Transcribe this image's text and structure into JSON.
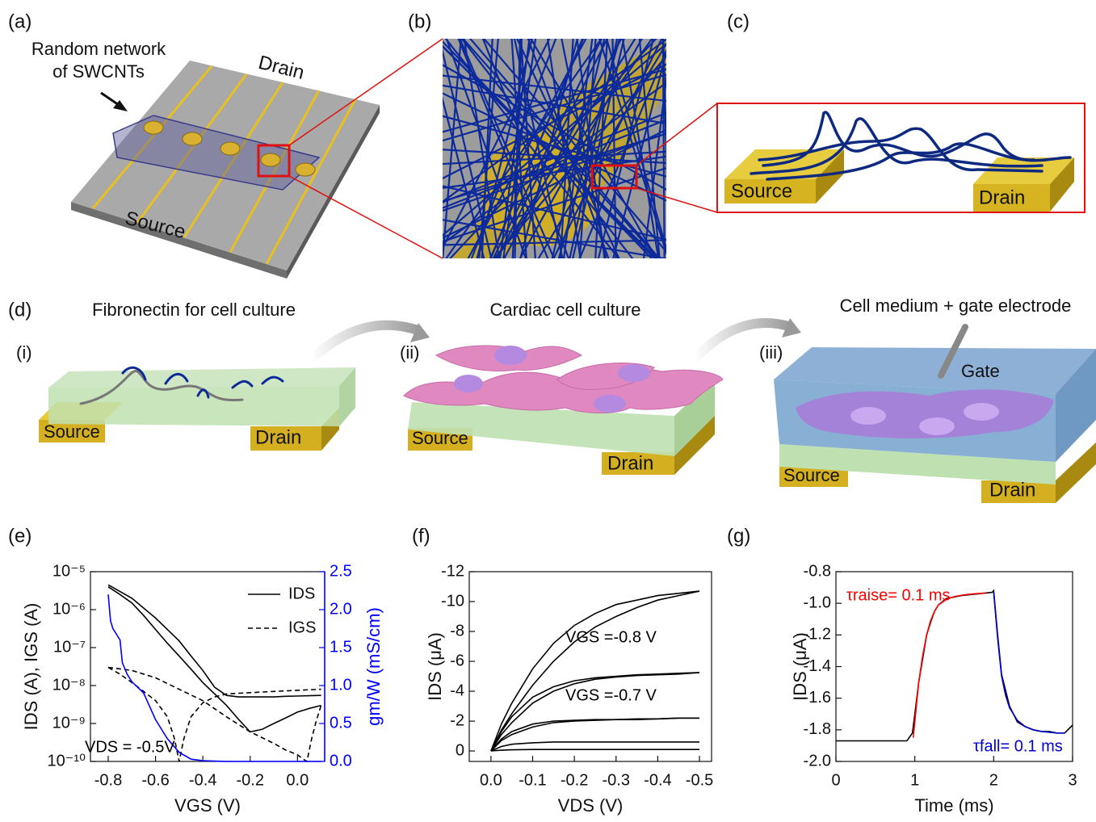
{
  "panel_labels": [
    "(a)",
    "(b)",
    "(c)",
    "(d)",
    "(e)",
    "(f)",
    "(g)"
  ],
  "panel_a": {
    "annotation": [
      "Random network",
      "of SWCNTs"
    ],
    "drain": "Drain",
    "source": "Source"
  },
  "panel_c": {
    "source": "Source",
    "drain": "Drain"
  },
  "panel_d": {
    "steps": [
      {
        "label": "(i)",
        "title": "Fibronectin for cell culture",
        "source": "Source",
        "drain": "Drain"
      },
      {
        "label": "(ii)",
        "title": "Cardiac cell culture",
        "source": "Source",
        "drain": "Drain"
      },
      {
        "label": "(iii)",
        "title": "Cell medium + gate electrode",
        "source": "Source",
        "drain": "Drain",
        "gate": "Gate"
      }
    ]
  },
  "chart_data": [
    {
      "type": "line",
      "x_label": "VGS (V)",
      "y_label": "IDS (A), IGS (A)",
      "y2_label": "gm/W (mS/cm)",
      "annotations": [
        {
          "text": "VDS = -0.5V",
          "color": "#000000"
        }
      ],
      "xlim": [
        -0.875,
        0.115
      ],
      "xticks": [
        -0.8,
        -0.6,
        -0.4,
        -0.2,
        {
          "value": 0,
          "label": "0.0"
        }
      ],
      "log_y": true,
      "ylim": [
        1e-10,
        1e-05
      ],
      "yticks": [
        {
          "value": 1e-10,
          "label": "10⁻¹⁰"
        },
        {
          "value": 1e-09,
          "label": "10⁻⁹"
        },
        {
          "value": 1e-08,
          "label": "10⁻⁸"
        },
        {
          "value": 1e-07,
          "label": "10⁻⁷"
        },
        {
          "value": 1e-06,
          "label": "10⁻⁶"
        },
        {
          "value": 1e-05,
          "label": "10⁻⁵"
        }
      ],
      "y2lim": [
        0,
        2.5
      ],
      "y2ticks": [
        {
          "value": 0,
          "label": "0.0"
        },
        0.5,
        {
          "value": 1,
          "label": "1.0"
        },
        1.5,
        {
          "value": 2,
          "label": "2.0"
        },
        2.5
      ],
      "legend": "upper right",
      "series": [
        {
          "name": "IDS",
          "color": "#000000",
          "x": [
            -0.8,
            -0.75,
            -0.7,
            -0.65,
            -0.6,
            -0.55,
            -0.5,
            -0.45,
            -0.4,
            -0.35,
            -0.3,
            -0.25,
            -0.2,
            -0.15,
            -0.1,
            -0.05,
            0,
            0.05,
            0.1
          ],
          "values": [
            4e-06,
            2.5e-06,
            1.5e-06,
            7e-07,
            3e-07,
            1.3e-07,
            6e-08,
            2.7e-08,
            1.2e-08,
            6e-09,
            3e-09,
            1.3e-09,
            6e-10,
            7e-10,
            1e-09,
            1.4e-09,
            2e-09,
            2.5e-09,
            3e-09
          ]
        },
        {
          "color": "#000000",
          "x": [
            -0.8,
            -0.75,
            -0.7,
            -0.65,
            -0.6,
            -0.55,
            -0.5,
            -0.45,
            -0.4,
            -0.35,
            -0.3,
            -0.25,
            -0.2,
            -0.15,
            -0.1,
            -0.05,
            0,
            0.05,
            0.1
          ],
          "values": [
            4.5e-06,
            3e-06,
            2e-06,
            1.1e-06,
            6e-07,
            3e-07,
            1.5e-07,
            6e-08,
            2.5e-08,
            9e-09,
            5.5e-09,
            5e-09,
            5e-09,
            5e-09,
            5e-09,
            5.2e-09,
            5.3e-09,
            5.4e-09,
            5.5e-09
          ]
        },
        {
          "name": "IGS",
          "color": "#000000",
          "dash": "dashed",
          "x": [
            -0.8,
            -0.75,
            -0.7,
            -0.65,
            -0.6,
            -0.55,
            -0.52,
            -0.5,
            -0.48,
            -0.45,
            -0.4,
            -0.35,
            -0.3,
            -0.2,
            -0.1,
            0,
            0.1
          ],
          "values": [
            3e-08,
            2e-08,
            1.2e-08,
            7e-09,
            4e-09,
            1.5e-09,
            4e-10,
            1e-10,
            4e-10,
            1.5e-09,
            3.5e-09,
            5e-09,
            6e-09,
            6.5e-09,
            7e-09,
            7.5e-09,
            8e-09
          ]
        },
        {
          "color": "#000000",
          "dash": "dashed",
          "x": [
            -0.8,
            -0.7,
            -0.6,
            -0.5,
            -0.4,
            -0.3,
            -0.2,
            -0.1,
            -0.05,
            0,
            0.02,
            0.04,
            0.06,
            0.08,
            0.1
          ],
          "values": [
            3e-08,
            2.5e-08,
            1.6e-08,
            8e-09,
            4e-09,
            1.5e-09,
            6e-10,
            3e-10,
            2e-10,
            1.5e-10,
            1.2e-10,
            1e-10,
            4e-10,
            1.2e-09,
            3e-09
          ]
        },
        {
          "color": "#0000ff",
          "axis": "y2",
          "x": [
            -0.8,
            -0.79,
            -0.78,
            -0.77,
            -0.75,
            -0.74,
            -0.72,
            -0.7,
            -0.65,
            -0.6,
            -0.55,
            -0.5,
            -0.45,
            -0.4,
            -0.3,
            -0.2,
            -0.1,
            0,
            0.1
          ],
          "values": [
            2.2,
            1.85,
            1.75,
            1.7,
            1.6,
            1.3,
            1.15,
            1.05,
            0.9,
            0.55,
            0.3,
            0.12,
            0.03,
            0.01,
            0,
            0,
            0,
            0,
            0
          ]
        }
      ]
    },
    {
      "type": "line",
      "x_label": "VDS (V)",
      "y_label": "IDS (μA)",
      "annotations": [
        {
          "text": "VGS =-0.8 V",
          "color": "#000000"
        },
        {
          "text": "VGS =-0.7 V",
          "color": "#000000"
        }
      ],
      "xlim": [
        0.052,
        -0.529
      ],
      "xticks": [
        {
          "value": 0,
          "label": "0.0"
        },
        -0.1,
        -0.2,
        -0.3,
        -0.4,
        -0.5
      ],
      "ylim": [
        0.7,
        -12
      ],
      "yticks": [
        -12,
        -10,
        -8,
        -6,
        -4,
        -2,
        0
      ],
      "x": [
        0,
        -0.025,
        -0.05,
        -0.1,
        -0.15,
        -0.2,
        -0.25,
        -0.3,
        -0.35,
        -0.4,
        -0.45,
        -0.5
      ],
      "series": [
        {
          "color": "#000000",
          "values": [
            0,
            -1.8,
            -3.2,
            -5.5,
            -7.2,
            -8.4,
            -9.2,
            -9.8,
            -10.1,
            -10.4,
            -10.55,
            -10.7
          ]
        },
        {
          "color": "#000000",
          "values": [
            0,
            -1.4,
            -2.5,
            -4.4,
            -6.0,
            -7.3,
            -8.3,
            -9.0,
            -9.6,
            -10.1,
            -10.4,
            -10.7
          ]
        },
        {
          "color": "#000000",
          "values": [
            0,
            -1.3,
            -2.3,
            -3.6,
            -4.3,
            -4.7,
            -4.9,
            -5.0,
            -5.1,
            -5.15,
            -5.2,
            -5.25
          ]
        },
        {
          "color": "#000000",
          "values": [
            0,
            -1.1,
            -1.9,
            -3.2,
            -4.0,
            -4.5,
            -4.8,
            -4.95,
            -5.05,
            -5.1,
            -5.15,
            -5.25
          ]
        },
        {
          "color": "#000000",
          "values": [
            0,
            -0.8,
            -1.3,
            -1.8,
            -2.0,
            -2.05,
            -2.1,
            -2.1,
            -2.15,
            -2.15,
            -2.2,
            -2.2
          ]
        },
        {
          "color": "#000000",
          "values": [
            0,
            -0.7,
            -1.1,
            -1.6,
            -1.9,
            -2.0,
            -2.05,
            -2.1,
            -2.1,
            -2.15,
            -2.2,
            -2.2
          ]
        },
        {
          "color": "#000000",
          "values": [
            0,
            -0.3,
            -0.45,
            -0.55,
            -0.6,
            -0.6,
            -0.6,
            -0.6,
            -0.6,
            -0.6,
            -0.6,
            -0.6
          ]
        },
        {
          "color": "#000000",
          "values": [
            0,
            -0.05,
            -0.08,
            -0.1,
            -0.1,
            -0.1,
            -0.1,
            -0.1,
            -0.1,
            -0.1,
            -0.1,
            -0.1
          ]
        }
      ]
    },
    {
      "type": "line",
      "x_label": "Time (ms)",
      "y_label": "IDS (μA)",
      "annotations": [
        {
          "text": "τraise= 0.1 ms",
          "color": "#ff0000"
        },
        {
          "text": "τfall= 0.1 ms",
          "color": "#0000cc"
        }
      ],
      "xlim": [
        0,
        3
      ],
      "xticks": [
        0,
        1,
        2,
        3
      ],
      "ylim": [
        -2.0,
        -0.8
      ],
      "yticks": [
        -0.8,
        {
          "value": -1,
          "label": "-1.0"
        },
        -1.2,
        -1.4,
        -1.6,
        -1.8,
        {
          "value": -2,
          "label": "-2.0"
        }
      ],
      "series": [
        {
          "color": "#000000",
          "x": [
            0,
            0.9,
            0.97,
            1.0,
            1.05,
            1.1,
            1.15,
            1.2,
            1.25,
            1.3,
            1.4,
            1.5,
            1.6,
            1.7,
            1.8,
            1.9,
            1.98,
            2.0,
            2.05,
            2.1,
            2.2,
            2.3,
            2.4,
            2.5,
            2.6,
            2.7,
            2.8,
            2.9,
            3.0
          ],
          "values": [
            -1.87,
            -1.87,
            -1.82,
            -1.7,
            -1.5,
            -1.35,
            -1.2,
            -1.12,
            -1.05,
            -1.01,
            -0.97,
            -0.96,
            -0.95,
            -0.945,
            -0.94,
            -0.935,
            -0.93,
            -0.92,
            -1.2,
            -1.45,
            -1.65,
            -1.75,
            -1.78,
            -1.8,
            -1.81,
            -1.81,
            -1.82,
            -1.82,
            -1.77
          ]
        },
        {
          "color": "#ff0000",
          "x": [
            0.98,
            1.05,
            1.1,
            1.15,
            1.2,
            1.25,
            1.3,
            1.4,
            1.5,
            1.6,
            1.7,
            1.8,
            1.9
          ],
          "values": [
            -1.85,
            -1.5,
            -1.33,
            -1.2,
            -1.11,
            -1.05,
            -1.01,
            -0.975,
            -0.958,
            -0.948,
            -0.942,
            -0.938,
            -0.935
          ]
        },
        {
          "color": "#0000cc",
          "x": [
            2.0,
            2.05,
            2.1,
            2.15,
            2.2,
            2.3,
            2.4,
            2.5,
            2.6,
            2.7,
            2.8,
            2.9
          ],
          "values": [
            -0.93,
            -1.22,
            -1.46,
            -1.58,
            -1.66,
            -1.74,
            -1.78,
            -1.8,
            -1.81,
            -1.815,
            -1.82,
            -1.82
          ]
        }
      ]
    }
  ]
}
